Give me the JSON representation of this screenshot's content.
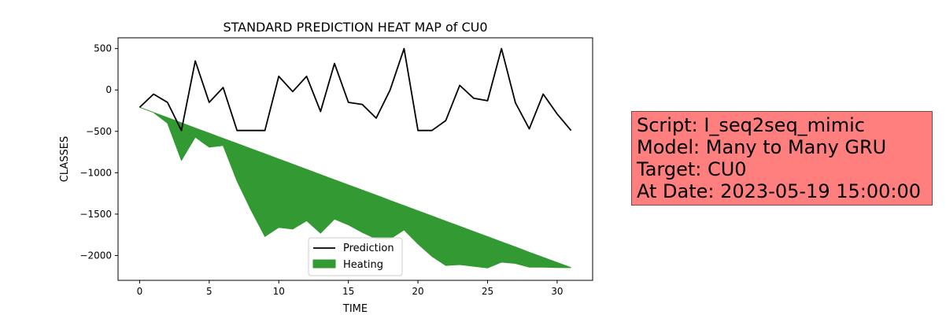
{
  "chart_data": {
    "type": "line",
    "title": "STANDARD PREDICTION HEAT MAP of CU0",
    "xlabel": "TIME",
    "ylabel": "CLASSES",
    "xlim": [
      -1.55,
      32.55
    ],
    "ylim": [
      -2300,
      630
    ],
    "xticks": [
      0,
      5,
      10,
      15,
      20,
      25,
      30
    ],
    "yticks": [
      500,
      0,
      -500,
      -1000,
      -1500,
      -2000
    ],
    "ytick_labels": [
      "500",
      "0",
      "−500",
      "−1000",
      "−1500",
      "−2000"
    ],
    "grid": false,
    "legend_position": "bottom-center",
    "x": [
      0,
      1,
      2,
      3,
      4,
      5,
      6,
      7,
      8,
      9,
      10,
      11,
      12,
      13,
      14,
      15,
      16,
      17,
      18,
      19,
      20,
      21,
      22,
      23,
      24,
      25,
      26,
      27,
      28,
      29,
      30,
      31
    ],
    "series": [
      {
        "name": "Prediction",
        "kind": "line",
        "color": "#000000",
        "values": [
          -210,
          -50,
          -150,
          -490,
          350,
          -150,
          30,
          -490,
          -490,
          -490,
          165,
          -20,
          165,
          -260,
          320,
          -150,
          -175,
          -340,
          0,
          500,
          -490,
          -490,
          -370,
          55,
          -100,
          -130,
          500,
          -155,
          -470,
          -50,
          -290,
          -490
        ]
      },
      {
        "name": "Heating",
        "kind": "fill_between",
        "color": "#339933",
        "upper": [
          -210,
          -272,
          -335,
          -397,
          -460,
          -522,
          -585,
          -647,
          -710,
          -772,
          -835,
          -897,
          -960,
          -1022,
          -1085,
          -1147,
          -1210,
          -1272,
          -1335,
          -1397,
          -1460,
          -1522,
          -1585,
          -1647,
          -1710,
          -1772,
          -1835,
          -1897,
          -1960,
          -2022,
          -2085,
          -2147
        ],
        "lower": [
          -210,
          -272,
          -400,
          -850,
          -570,
          -690,
          -670,
          -1100,
          -1450,
          -1770,
          -1660,
          -1680,
          -1580,
          -1730,
          -1560,
          -1630,
          -1720,
          -1800,
          -1800,
          -1690,
          -1860,
          -2010,
          -2120,
          -2110,
          -2130,
          -2150,
          -2080,
          -2095,
          -2140,
          -2140,
          -2145,
          -2147
        ]
      }
    ]
  },
  "info": {
    "lines": [
      "Script: I_seq2seq_mimic",
      "Model: Many to Many GRU",
      "Target: CU0",
      "At Date: 2023-05-19 15:00:00"
    ],
    "background": "#ff7f7f"
  }
}
